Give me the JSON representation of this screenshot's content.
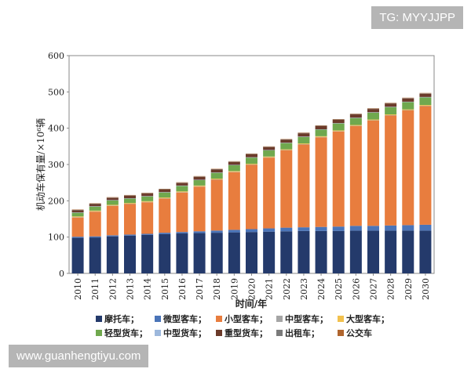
{
  "watermarks": {
    "top_right": "TG: MYYJJPP",
    "bottom_left": "www.guanhengtiyu.com"
  },
  "chart_data": {
    "type": "bar",
    "stacked": true,
    "title": "",
    "xlabel": "时间/年",
    "ylabel": "机动车保有量/×10⁶辆",
    "ylim": [
      0,
      600
    ],
    "yticks": [
      0,
      100,
      200,
      300,
      400,
      500,
      600
    ],
    "grid": false,
    "legend_position": "bottom",
    "categories": [
      "2010",
      "2011",
      "2012",
      "2013",
      "2014",
      "2015",
      "2016",
      "2017",
      "2018",
      "2019",
      "2020",
      "2021",
      "2022",
      "2023",
      "2024",
      "2025",
      "2026",
      "2027",
      "2028",
      "2029",
      "2030"
    ],
    "series": [
      {
        "name": "摩托车；",
        "color": "#243a6b",
        "values": [
          98,
          99,
          102,
          104,
          106,
          108,
          110,
          111,
          112,
          113,
          114,
          115,
          116,
          117,
          117,
          117,
          118,
          118,
          118,
          118,
          118
        ]
      },
      {
        "name": "微型客车；",
        "color": "#4a74b8",
        "values": [
          3,
          3,
          3,
          3,
          3,
          4,
          4,
          5,
          6,
          7,
          8,
          9,
          10,
          10,
          11,
          12,
          13,
          13,
          14,
          15,
          16
        ]
      },
      {
        "name": "小型客车；",
        "color": "#e87d3e",
        "values": [
          53,
          68,
          81,
          84,
          87,
          94,
          109,
          123,
          140,
          159,
          177,
          195,
          213,
          228,
          247,
          262,
          275,
          290,
          303,
          316,
          327
        ]
      },
      {
        "name": "中型客车；",
        "color": "#a5a5a5",
        "values": [
          1,
          1,
          1,
          1,
          1,
          1,
          1,
          1,
          1,
          1,
          1,
          1,
          1,
          1,
          1,
          1,
          1,
          1,
          1,
          1,
          1
        ]
      },
      {
        "name": "大型客车；",
        "color": "#f2c14e",
        "values": [
          2,
          2,
          2,
          2,
          2,
          2,
          2,
          2,
          2,
          2,
          2,
          2,
          2,
          2,
          2,
          2,
          2,
          2,
          2,
          2,
          2
        ]
      },
      {
        "name": "轻型货车；",
        "color": "#70a84e",
        "values": [
          10,
          11,
          12,
          12,
          13,
          14,
          15,
          15,
          16,
          16,
          17,
          17,
          17,
          18,
          18,
          19,
          19,
          19,
          20,
          20,
          21
        ]
      },
      {
        "name": "中型货车；",
        "color": "#9db8dc",
        "values": [
          1,
          1,
          1,
          1,
          1,
          1,
          1,
          1,
          1,
          1,
          1,
          1,
          1,
          1,
          1,
          1,
          1,
          1,
          1,
          1,
          1
        ]
      },
      {
        "name": "重型货车；",
        "color": "#6b3a2a",
        "values": [
          6,
          6,
          6,
          7,
          7,
          7,
          7,
          8,
          8,
          8,
          8,
          8,
          8,
          9,
          9,
          9,
          9,
          9,
          9,
          9,
          9
        ]
      },
      {
        "name": "出租车；",
        "color": "#7a7a7a",
        "values": [
          1,
          1,
          1,
          1,
          1,
          1,
          1,
          1,
          1,
          1,
          1,
          1,
          1,
          1,
          1,
          1,
          1,
          1,
          1,
          1,
          1
        ]
      },
      {
        "name": "公交车",
        "color": "#b0652e",
        "values": [
          1,
          1,
          1,
          1,
          1,
          1,
          1,
          1,
          1,
          1,
          1,
          1,
          1,
          1,
          1,
          1,
          1,
          1,
          1,
          1,
          1
        ]
      }
    ]
  }
}
